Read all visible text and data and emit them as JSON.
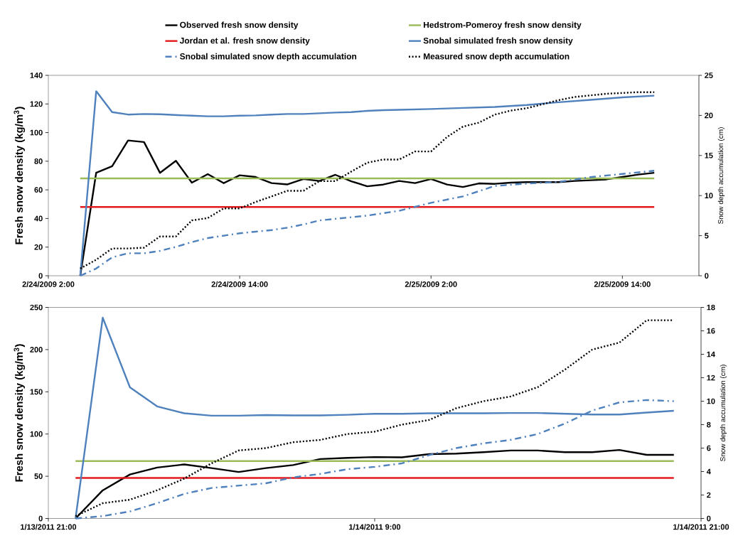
{
  "chart_data": [
    {
      "type": "line",
      "ylabel": "Fresh snow density (kg/m$^{3}$)",
      "y2label": "Snow depth accumulation (cm)",
      "legend": "top",
      "xlim": [
        "2009-02-24T02:00",
        "2009-02-25T18:48"
      ],
      "xticks": [
        {
          "value": "2009-02-24T02:00",
          "label": "2/24/2009 2:00"
        },
        {
          "value": "2009-02-24T14:00",
          "label": "2/24/2009 14:00"
        },
        {
          "value": "2009-02-25T02:00",
          "label": "2/25/2009 2:00"
        },
        {
          "value": "2009-02-25T14:00",
          "label": "2/25/2009 14:00"
        }
      ],
      "ylim": [
        0,
        140
      ],
      "yticks": [
        0,
        20,
        40,
        60,
        80,
        100,
        120,
        140
      ],
      "y2lim": [
        0,
        25
      ],
      "y2ticks": [
        0,
        5,
        10,
        15,
        20,
        25
      ],
      "series": [
        {
          "name": "Observed fresh snow density",
          "color": "#000000",
          "line_style": "solid",
          "x": [
            "2009-02-24T04:00",
            "2009-02-24T05:00",
            "2009-02-24T06:00",
            "2009-02-24T07:00",
            "2009-02-24T08:00",
            "2009-02-24T09:00",
            "2009-02-24T10:00",
            "2009-02-24T11:00",
            "2009-02-24T12:00",
            "2009-02-24T13:00",
            "2009-02-24T14:00",
            "2009-02-24T15:00",
            "2009-02-24T16:00",
            "2009-02-24T17:00",
            "2009-02-24T18:00",
            "2009-02-24T19:00",
            "2009-02-24T20:00",
            "2009-02-24T21:00",
            "2009-02-24T22:00",
            "2009-02-24T23:00",
            "2009-02-25T00:00",
            "2009-02-25T01:00",
            "2009-02-25T02:00",
            "2009-02-25T03:00",
            "2009-02-25T04:00",
            "2009-02-25T05:00",
            "2009-02-25T06:00",
            "2009-02-25T07:00",
            "2009-02-25T08:00",
            "2009-02-25T09:00",
            "2009-02-25T10:00",
            "2009-02-25T11:00",
            "2009-02-25T12:00",
            "2009-02-25T13:00",
            "2009-02-25T14:00",
            "2009-02-25T15:00",
            "2009-02-25T16:00"
          ],
          "values": [
            0,
            71.9,
            76.5,
            94.5,
            93.4,
            71.9,
            80.3,
            65,
            71,
            64.7,
            70.2,
            69,
            64.7,
            63.8,
            67.6,
            66.2,
            70.5,
            66,
            62.5,
            63.7,
            66.2,
            64.7,
            67.6,
            63.7,
            62,
            64.5,
            64.2,
            65,
            65.4,
            65.4,
            65.4,
            66.2,
            66.7,
            67.3,
            69,
            70.7,
            71.9
          ]
        },
        {
          "name": "Hedstrom-Pomeroy fresh snow density",
          "color": "#9bbb59",
          "line_style": "solid",
          "x": [
            "2009-02-24T04:00",
            "2009-02-25T16:00"
          ],
          "values": [
            68,
            68
          ]
        },
        {
          "name": "Jordan et al. fresh snow density",
          "color": "#e31a1c",
          "line_style": "solid",
          "x": [
            "2009-02-24T04:00",
            "2009-02-25T16:00"
          ],
          "values": [
            48,
            48
          ]
        },
        {
          "name": "Snobal simulated fresh snow density",
          "color": "#4f81bd",
          "line_style": "solid",
          "x": [
            "2009-02-24T04:00",
            "2009-02-24T05:00",
            "2009-02-24T06:00",
            "2009-02-24T07:00",
            "2009-02-24T08:00",
            "2009-02-24T09:00",
            "2009-02-24T10:00",
            "2009-02-24T11:00",
            "2009-02-24T12:00",
            "2009-02-24T13:00",
            "2009-02-24T14:00",
            "2009-02-24T15:00",
            "2009-02-24T16:00",
            "2009-02-24T17:00",
            "2009-02-24T18:00",
            "2009-02-24T19:00",
            "2009-02-24T20:00",
            "2009-02-24T21:00",
            "2009-02-24T22:00",
            "2009-02-24T23:00",
            "2009-02-25T00:00",
            "2009-02-25T02:00",
            "2009-02-25T04:00",
            "2009-02-25T06:00",
            "2009-02-25T08:00",
            "2009-02-25T10:00",
            "2009-02-25T12:00",
            "2009-02-25T14:00",
            "2009-02-25T16:00"
          ],
          "values": [
            0,
            128.9,
            114.3,
            112.6,
            113,
            112.8,
            112.3,
            111.8,
            111.4,
            111.4,
            111.8,
            112,
            112.6,
            113,
            113,
            113.5,
            114,
            114.3,
            115.2,
            115.7,
            115.9,
            116.5,
            117.2,
            117.9,
            119.3,
            121.2,
            122.9,
            124.6,
            125.8
          ]
        },
        {
          "name": "Snobal simulated snow depth accumulation",
          "color": "#4f81bd",
          "line_style": "dashdot",
          "axis": "y2",
          "x": [
            "2009-02-24T04:00",
            "2009-02-24T05:00",
            "2009-02-24T06:00",
            "2009-02-24T07:00",
            "2009-02-24T08:00",
            "2009-02-24T09:00",
            "2009-02-24T10:00",
            "2009-02-24T11:00",
            "2009-02-24T12:00",
            "2009-02-24T13:00",
            "2009-02-24T14:00",
            "2009-02-24T15:00",
            "2009-02-24T16:00",
            "2009-02-24T17:00",
            "2009-02-24T18:00",
            "2009-02-24T19:00",
            "2009-02-24T20:00",
            "2009-02-24T21:00",
            "2009-02-24T22:00",
            "2009-02-24T23:00",
            "2009-02-25T00:00",
            "2009-02-25T02:00",
            "2009-02-25T04:00",
            "2009-02-25T06:00",
            "2009-02-25T08:00",
            "2009-02-25T10:00",
            "2009-02-25T12:00",
            "2009-02-25T14:00",
            "2009-02-25T16:00"
          ],
          "values": [
            0,
            0.9,
            2.3,
            2.8,
            2.8,
            3.1,
            3.6,
            4.2,
            4.7,
            5.0,
            5.3,
            5.5,
            5.7,
            6.0,
            6.4,
            6.9,
            7.1,
            7.3,
            7.5,
            7.8,
            8.1,
            9.1,
            9.9,
            11.2,
            11.5,
            11.7,
            12.3,
            12.7,
            13.1
          ]
        },
        {
          "name": "Measured  snow depth accumulation",
          "color": "#000000",
          "line_style": "dotted",
          "axis": "y2",
          "x": [
            "2009-02-24T04:00",
            "2009-02-24T05:00",
            "2009-02-24T06:00",
            "2009-02-24T07:00",
            "2009-02-24T08:00",
            "2009-02-24T09:00",
            "2009-02-24T10:00",
            "2009-02-24T11:00",
            "2009-02-24T12:00",
            "2009-02-24T13:00",
            "2009-02-24T14:00",
            "2009-02-24T15:00",
            "2009-02-24T16:00",
            "2009-02-24T17:00",
            "2009-02-24T18:00",
            "2009-02-24T19:00",
            "2009-02-24T20:00",
            "2009-02-24T21:00",
            "2009-02-24T22:00",
            "2009-02-24T23:00",
            "2009-02-25T00:00",
            "2009-02-25T01:00",
            "2009-02-25T02:00",
            "2009-02-25T03:00",
            "2009-02-25T04:00",
            "2009-02-25T05:00",
            "2009-02-25T06:00",
            "2009-02-25T07:00",
            "2009-02-25T08:00",
            "2009-02-25T09:00",
            "2009-02-25T10:00",
            "2009-02-25T11:00",
            "2009-02-25T12:00",
            "2009-02-25T13:00",
            "2009-02-25T14:00",
            "2009-02-25T15:00",
            "2009-02-25T16:00"
          ],
          "values": [
            0.9,
            2,
            3.4,
            3.4,
            3.5,
            4.9,
            4.9,
            6.9,
            7.2,
            8.4,
            8.4,
            9.2,
            9.9,
            10.6,
            10.6,
            11.8,
            11.8,
            13,
            14.1,
            14.5,
            14.5,
            15.5,
            15.5,
            17.3,
            18.6,
            19.1,
            20.1,
            20.6,
            20.9,
            21.4,
            21.9,
            22.3,
            22.5,
            22.7,
            22.8,
            22.9,
            22.9
          ]
        }
      ]
    },
    {
      "type": "line",
      "ylabel": "Fresh snow density (kg/m$^{3}$)",
      "y2label": "Snow depth accumulation (cm)",
      "xlim": [
        "2011-01-13T21:00",
        "2011-01-14T21:00"
      ],
      "xticks": [
        {
          "value": "2011-01-13T21:00",
          "label": "1/13/2011 21:00"
        },
        {
          "value": "2011-01-14T09:00",
          "label": "1/14/2011 9:00"
        },
        {
          "value": "2011-01-14T21:00",
          "label": "1/14/2011 21:00"
        }
      ],
      "ylim": [
        0,
        250
      ],
      "yticks": [
        0,
        50,
        100,
        150,
        200,
        250
      ],
      "y2lim": [
        0,
        18
      ],
      "y2ticks": [
        0,
        2,
        4,
        6,
        8,
        10,
        12,
        14,
        16,
        18
      ],
      "x": [
        "2011-01-13T22:00",
        "2011-01-13T23:00",
        "2011-01-14T00:00",
        "2011-01-14T01:00",
        "2011-01-14T02:00",
        "2011-01-14T03:00",
        "2011-01-14T04:00",
        "2011-01-14T05:00",
        "2011-01-14T06:00",
        "2011-01-14T07:00",
        "2011-01-14T08:00",
        "2011-01-14T09:00",
        "2011-01-14T10:00",
        "2011-01-14T11:00",
        "2011-01-14T12:00",
        "2011-01-14T13:00",
        "2011-01-14T14:00",
        "2011-01-14T15:00",
        "2011-01-14T16:00",
        "2011-01-14T17:00",
        "2011-01-14T18:00",
        "2011-01-14T19:00",
        "2011-01-14T20:00"
      ],
      "series": [
        {
          "color": "#000000",
          "line_style": "solid",
          "values": [
            0,
            33.3,
            52.1,
            60.3,
            64,
            59.7,
            55,
            59.7,
            63.2,
            70.4,
            71.8,
            72.7,
            72.4,
            76.2,
            76.8,
            78.5,
            80.5,
            80.5,
            78.5,
            78.5,
            81.1,
            75.3,
            75.3
          ]
        },
        {
          "color": "#9bbb59",
          "line_style": "solid",
          "x": [
            "2011-01-13T22:00",
            "2011-01-14T20:00"
          ],
          "values": [
            68,
            68
          ]
        },
        {
          "color": "#e31a1c",
          "line_style": "solid",
          "x": [
            "2011-01-13T22:00",
            "2011-01-14T20:00"
          ],
          "values": [
            48,
            48
          ]
        },
        {
          "color": "#4f81bd",
          "line_style": "solid",
          "values": [
            0,
            237.8,
            155.3,
            132.7,
            124.6,
            121.7,
            121.7,
            122.5,
            122,
            122,
            122.8,
            124,
            124,
            124.6,
            124.6,
            124.6,
            124.9,
            124.9,
            124,
            123.1,
            123.1,
            125.4,
            127.5
          ]
        },
        {
          "color": "#4f81bd",
          "line_style": "dashdot",
          "axis": "y2",
          "values": [
            0,
            0.2,
            0.6,
            1.3,
            2.1,
            2.6,
            2.8,
            3.0,
            3.5,
            3.8,
            4.2,
            4.4,
            4.7,
            5.4,
            6.0,
            6.4,
            6.7,
            7.2,
            8.1,
            9.2,
            9.9,
            10.1,
            10.0
          ]
        },
        {
          "color": "#000000",
          "line_style": "dotted",
          "axis": "y2",
          "values": [
            0.2,
            1.3,
            1.6,
            2.4,
            3.4,
            4.7,
            5.8,
            6.0,
            6.5,
            6.7,
            7.2,
            7.4,
            8.0,
            8.4,
            9.4,
            10.0,
            10.4,
            11.2,
            12.7,
            14.4,
            15.0,
            16.9,
            16.9
          ]
        }
      ]
    }
  ]
}
